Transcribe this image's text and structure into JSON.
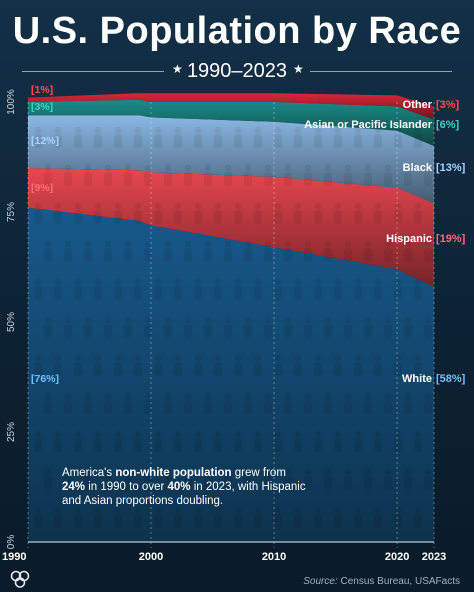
{
  "header": {
    "title": "U.S. Population by Race",
    "subtitle": "1990–2023",
    "star_left": "★",
    "star_right": "★"
  },
  "note": {
    "part1": "America's ",
    "bold1": "non-white population",
    "part2": " grew from ",
    "bold2": "24%",
    "part3": " in 1990 to over ",
    "bold3": "40%",
    "part4": " in 2023, with Hispanic and Asian proportions doubling."
  },
  "source": {
    "label": "Source:",
    "text": " Census Bureau, USAFacts"
  },
  "chart_data": {
    "type": "area",
    "stacked": true,
    "title": "U.S. Population by Race",
    "subtitle": "1990–2023",
    "x": [
      1990,
      1999,
      2000,
      2010,
      2020,
      2023
    ],
    "xticks": [
      "1990",
      "2000",
      "2010",
      "2020",
      "2023"
    ],
    "ylim": [
      0,
      100
    ],
    "yticks": [
      "0%",
      "25%",
      "50%",
      "75%",
      "100%"
    ],
    "series": [
      {
        "name": "White",
        "color": "#175a8c",
        "values": [
          76,
          73,
          72,
          67,
          62,
          58
        ],
        "start_label": "[76%]",
        "end_label": "[58%]"
      },
      {
        "name": "Hispanic",
        "color": "#e9474f",
        "values": [
          9,
          11.5,
          12,
          16,
          18.5,
          19
        ],
        "start_label": "[9%]",
        "end_label": "[19%]"
      },
      {
        "name": "Black",
        "color": "#8ab8e4",
        "values": [
          12,
          12.5,
          12.5,
          12.5,
          13,
          13
        ],
        "start_label": "[12%]",
        "end_label": "[13%]"
      },
      {
        "name": "Asian or Pacific Islander",
        "color": "#1b8c88",
        "values": [
          3,
          3.5,
          3.5,
          4.5,
          5.5,
          6
        ],
        "start_label": "[3%]",
        "end_label": "[6%]"
      },
      {
        "name": "Other",
        "color": "#d8273a",
        "values": [
          1,
          1.5,
          2,
          2,
          2.5,
          3
        ],
        "start_label": "[1%]",
        "end_label": "[3%]"
      }
    ],
    "grid": false,
    "legend": "inline-right"
  }
}
